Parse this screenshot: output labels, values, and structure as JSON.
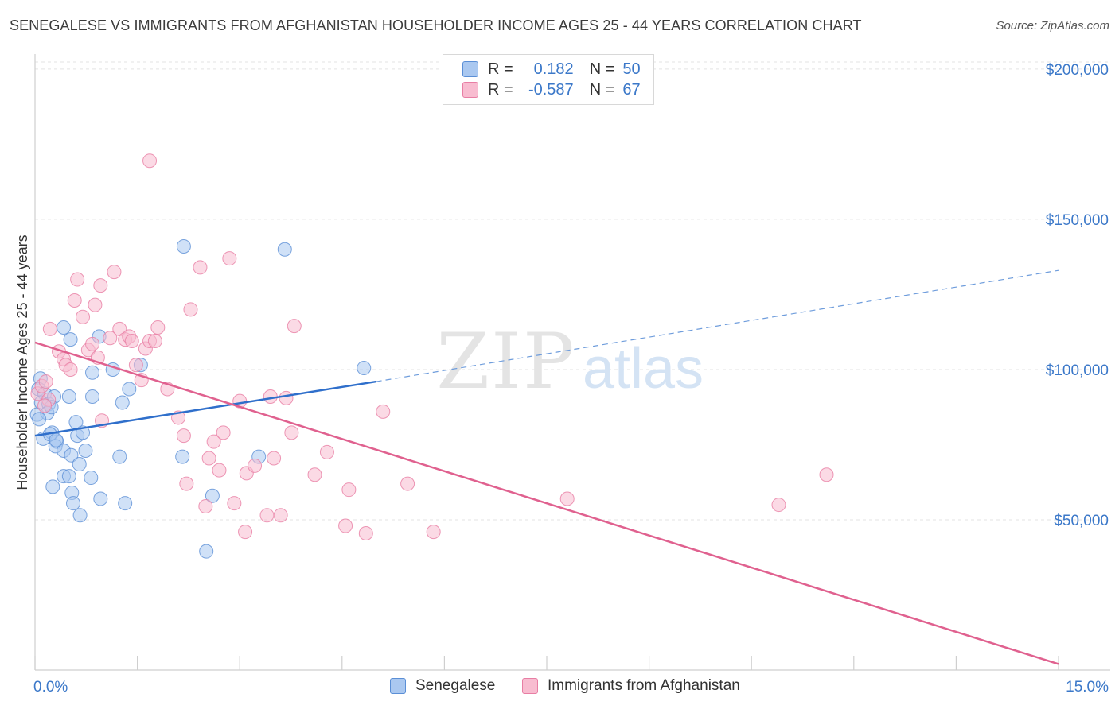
{
  "title": "SENEGALESE VS IMMIGRANTS FROM AFGHANISTAN HOUSEHOLDER INCOME AGES 25 - 44 YEARS CORRELATION CHART",
  "source": "Source: ZipAtlas.com",
  "watermark": {
    "zip": "ZIP",
    "atlas": "atlas"
  },
  "legend": {
    "r_label": "R =",
    "n_label": "N =",
    "series": [
      {
        "name": "Senegalese",
        "r": "0.182",
        "n": "50",
        "fill": "#aac8f0",
        "stroke": "#5b8fd6"
      },
      {
        "name": "Immigrants from Afghanistan",
        "r": "-0.587",
        "n": "67",
        "fill": "#f8bcd0",
        "stroke": "#e87ea4"
      }
    ]
  },
  "chart_data": {
    "type": "scatter",
    "title": "SENEGALESE VS IMMIGRANTS FROM AFGHANISTAN HOUSEHOLDER INCOME AGES 25 - 44 YEARS CORRELATION CHART",
    "xlabel": "",
    "ylabel": "Householder Income Ages 25 - 44 years",
    "xlim": [
      0,
      15
    ],
    "ylim": [
      0,
      205000
    ],
    "x_tick_labels": [
      "0.0%",
      "15.0%"
    ],
    "y_ticks": [
      50000,
      100000,
      150000,
      200000
    ],
    "y_tick_labels": [
      "$50,000",
      "$100,000",
      "$150,000",
      "$200,000"
    ],
    "grid": true,
    "legend_position": "top-center",
    "series": [
      {
        "name": "Senegalese",
        "color": "#5b8fd6",
        "fill": "#aac8f0",
        "points": [
          [
            0.08,
            97000
          ],
          [
            0.05,
            93500
          ],
          [
            0.14,
            92000
          ],
          [
            0.09,
            89000
          ],
          [
            0.2,
            88500
          ],
          [
            0.03,
            85000
          ],
          [
            0.18,
            85500
          ],
          [
            0.06,
            83500
          ],
          [
            0.12,
            77000
          ],
          [
            0.25,
            79000
          ],
          [
            0.32,
            76000
          ],
          [
            0.3,
            74500
          ],
          [
            0.22,
            78500
          ],
          [
            0.28,
            91000
          ],
          [
            0.5,
            91000
          ],
          [
            0.42,
            73000
          ],
          [
            0.6,
            82500
          ],
          [
            0.62,
            78000
          ],
          [
            0.7,
            79000
          ],
          [
            0.74,
            73000
          ],
          [
            0.53,
            71500
          ],
          [
            0.65,
            68500
          ],
          [
            0.42,
            64500
          ],
          [
            0.5,
            64500
          ],
          [
            0.82,
            64000
          ],
          [
            0.26,
            61000
          ],
          [
            0.54,
            59000
          ],
          [
            0.56,
            55500
          ],
          [
            0.66,
            51500
          ],
          [
            0.96,
            57000
          ],
          [
            1.32,
            55500
          ],
          [
            1.24,
            71000
          ],
          [
            1.28,
            89000
          ],
          [
            1.38,
            93500
          ],
          [
            1.55,
            101500
          ],
          [
            1.14,
            100000
          ],
          [
            0.84,
            99000
          ],
          [
            0.84,
            91000
          ],
          [
            0.94,
            111000
          ],
          [
            0.52,
            110000
          ],
          [
            0.42,
            114000
          ],
          [
            2.18,
            141000
          ],
          [
            2.16,
            71000
          ],
          [
            2.6,
            58000
          ],
          [
            2.51,
            39500
          ],
          [
            3.28,
            71000
          ],
          [
            3.66,
            140000
          ],
          [
            4.82,
            100500
          ],
          [
            0.31,
            76500
          ],
          [
            0.24,
            87500
          ]
        ],
        "trend_line": {
          "x": [
            0.0,
            5.0
          ],
          "y": [
            78000,
            96000
          ],
          "extended_x": [
            5.0,
            15.0
          ],
          "extended_y": [
            96000,
            133000
          ]
        }
      },
      {
        "name": "Immigrants from Afghanistan",
        "color": "#e87ea4",
        "fill": "#f8bcd0",
        "points": [
          [
            0.04,
            92000
          ],
          [
            0.1,
            94500
          ],
          [
            0.16,
            96000
          ],
          [
            0.2,
            90000
          ],
          [
            0.14,
            88000
          ],
          [
            0.22,
            113500
          ],
          [
            0.35,
            106000
          ],
          [
            0.42,
            103500
          ],
          [
            0.45,
            101500
          ],
          [
            0.52,
            100000
          ],
          [
            0.58,
            123000
          ],
          [
            0.62,
            130000
          ],
          [
            0.7,
            117500
          ],
          [
            0.78,
            106500
          ],
          [
            0.84,
            108500
          ],
          [
            0.88,
            121500
          ],
          [
            0.92,
            104000
          ],
          [
            0.96,
            128000
          ],
          [
            1.1,
            110500
          ],
          [
            1.16,
            132500
          ],
          [
            1.24,
            113500
          ],
          [
            1.32,
            110000
          ],
          [
            1.38,
            111000
          ],
          [
            1.42,
            109500
          ],
          [
            1.48,
            101500
          ],
          [
            1.56,
            96500
          ],
          [
            1.62,
            107000
          ],
          [
            1.68,
            109500
          ],
          [
            1.76,
            109500
          ],
          [
            1.8,
            114000
          ],
          [
            1.68,
            169500
          ],
          [
            1.94,
            93500
          ],
          [
            2.1,
            84000
          ],
          [
            2.18,
            78000
          ],
          [
            2.22,
            62000
          ],
          [
            2.28,
            120000
          ],
          [
            2.42,
            134000
          ],
          [
            2.5,
            54500
          ],
          [
            2.55,
            70500
          ],
          [
            2.62,
            76000
          ],
          [
            2.7,
            66500
          ],
          [
            2.76,
            79000
          ],
          [
            2.85,
            137000
          ],
          [
            2.92,
            55500
          ],
          [
            3.0,
            89500
          ],
          [
            3.08,
            46000
          ],
          [
            3.1,
            65500
          ],
          [
            3.22,
            68000
          ],
          [
            3.4,
            51500
          ],
          [
            3.45,
            91000
          ],
          [
            3.5,
            70500
          ],
          [
            3.6,
            51500
          ],
          [
            3.68,
            90500
          ],
          [
            3.76,
            79000
          ],
          [
            3.8,
            114500
          ],
          [
            4.1,
            65000
          ],
          [
            4.28,
            72500
          ],
          [
            4.6,
            60000
          ],
          [
            4.55,
            48000
          ],
          [
            4.85,
            45500
          ],
          [
            5.1,
            86000
          ],
          [
            5.46,
            62000
          ],
          [
            5.84,
            46000
          ],
          [
            7.8,
            57000
          ],
          [
            10.9,
            55000
          ],
          [
            11.6,
            65000
          ],
          [
            0.98,
            83000
          ]
        ],
        "trend_line": {
          "x": [
            0.0,
            15.0
          ],
          "y": [
            109000,
            2000
          ]
        }
      }
    ]
  }
}
